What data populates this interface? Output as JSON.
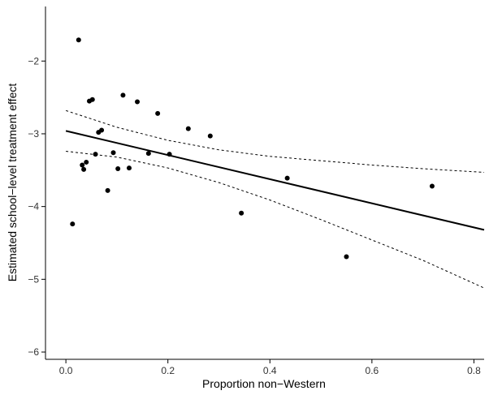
{
  "chart_data": {
    "type": "scatter",
    "title": "",
    "xlabel": "Proportion non−Western",
    "ylabel": "Estimated school−level treatment effect",
    "xlim": [
      -0.04,
      0.82
    ],
    "ylim": [
      -6.1,
      -1.25
    ],
    "grid": false,
    "legend": "none",
    "x_ticks": [
      {
        "value": 0.0,
        "label": "0.0"
      },
      {
        "value": 0.2,
        "label": "0.2"
      },
      {
        "value": 0.4,
        "label": "0.4"
      },
      {
        "value": 0.6,
        "label": "0.6"
      },
      {
        "value": 0.8,
        "label": "0.8"
      }
    ],
    "y_ticks": [
      {
        "value": -2,
        "label": "−2"
      },
      {
        "value": -3,
        "label": "−3"
      },
      {
        "value": -4,
        "label": "−4"
      },
      {
        "value": -5,
        "label": "−5"
      },
      {
        "value": -6,
        "label": "−6"
      }
    ],
    "points": [
      {
        "x": 0.013,
        "y": -4.24
      },
      {
        "x": 0.025,
        "y": -1.71
      },
      {
        "x": 0.032,
        "y": -3.43
      },
      {
        "x": 0.035,
        "y": -3.49
      },
      {
        "x": 0.04,
        "y": -3.39
      },
      {
        "x": 0.046,
        "y": -2.55
      },
      {
        "x": 0.052,
        "y": -2.53
      },
      {
        "x": 0.058,
        "y": -3.28
      },
      {
        "x": 0.064,
        "y": -2.98
      },
      {
        "x": 0.07,
        "y": -2.95
      },
      {
        "x": 0.082,
        "y": -3.78
      },
      {
        "x": 0.093,
        "y": -3.26
      },
      {
        "x": 0.102,
        "y": -3.48
      },
      {
        "x": 0.112,
        "y": -2.47
      },
      {
        "x": 0.124,
        "y": -3.47
      },
      {
        "x": 0.14,
        "y": -2.56
      },
      {
        "x": 0.162,
        "y": -3.27
      },
      {
        "x": 0.18,
        "y": -2.72
      },
      {
        "x": 0.203,
        "y": -3.28
      },
      {
        "x": 0.24,
        "y": -2.93
      },
      {
        "x": 0.283,
        "y": -3.03
      },
      {
        "x": 0.344,
        "y": -4.09
      },
      {
        "x": 0.434,
        "y": -3.61
      },
      {
        "x": 0.55,
        "y": -4.69
      },
      {
        "x": 0.718,
        "y": -3.72
      }
    ],
    "fit_line": {
      "x": [
        0.0,
        0.82
      ],
      "y": [
        -2.96,
        -4.32
      ]
    },
    "ci_upper": {
      "x": [
        0.0,
        0.1,
        0.2,
        0.3,
        0.4,
        0.5,
        0.6,
        0.7,
        0.82
      ],
      "y": [
        -2.68,
        -2.91,
        -3.09,
        -3.22,
        -3.31,
        -3.37,
        -3.43,
        -3.48,
        -3.53
      ]
    },
    "ci_lower": {
      "x": [
        0.0,
        0.1,
        0.2,
        0.3,
        0.4,
        0.5,
        0.6,
        0.7,
        0.82
      ],
      "y": [
        -3.24,
        -3.32,
        -3.47,
        -3.67,
        -3.91,
        -4.18,
        -4.46,
        -4.74,
        -5.12
      ]
    }
  }
}
